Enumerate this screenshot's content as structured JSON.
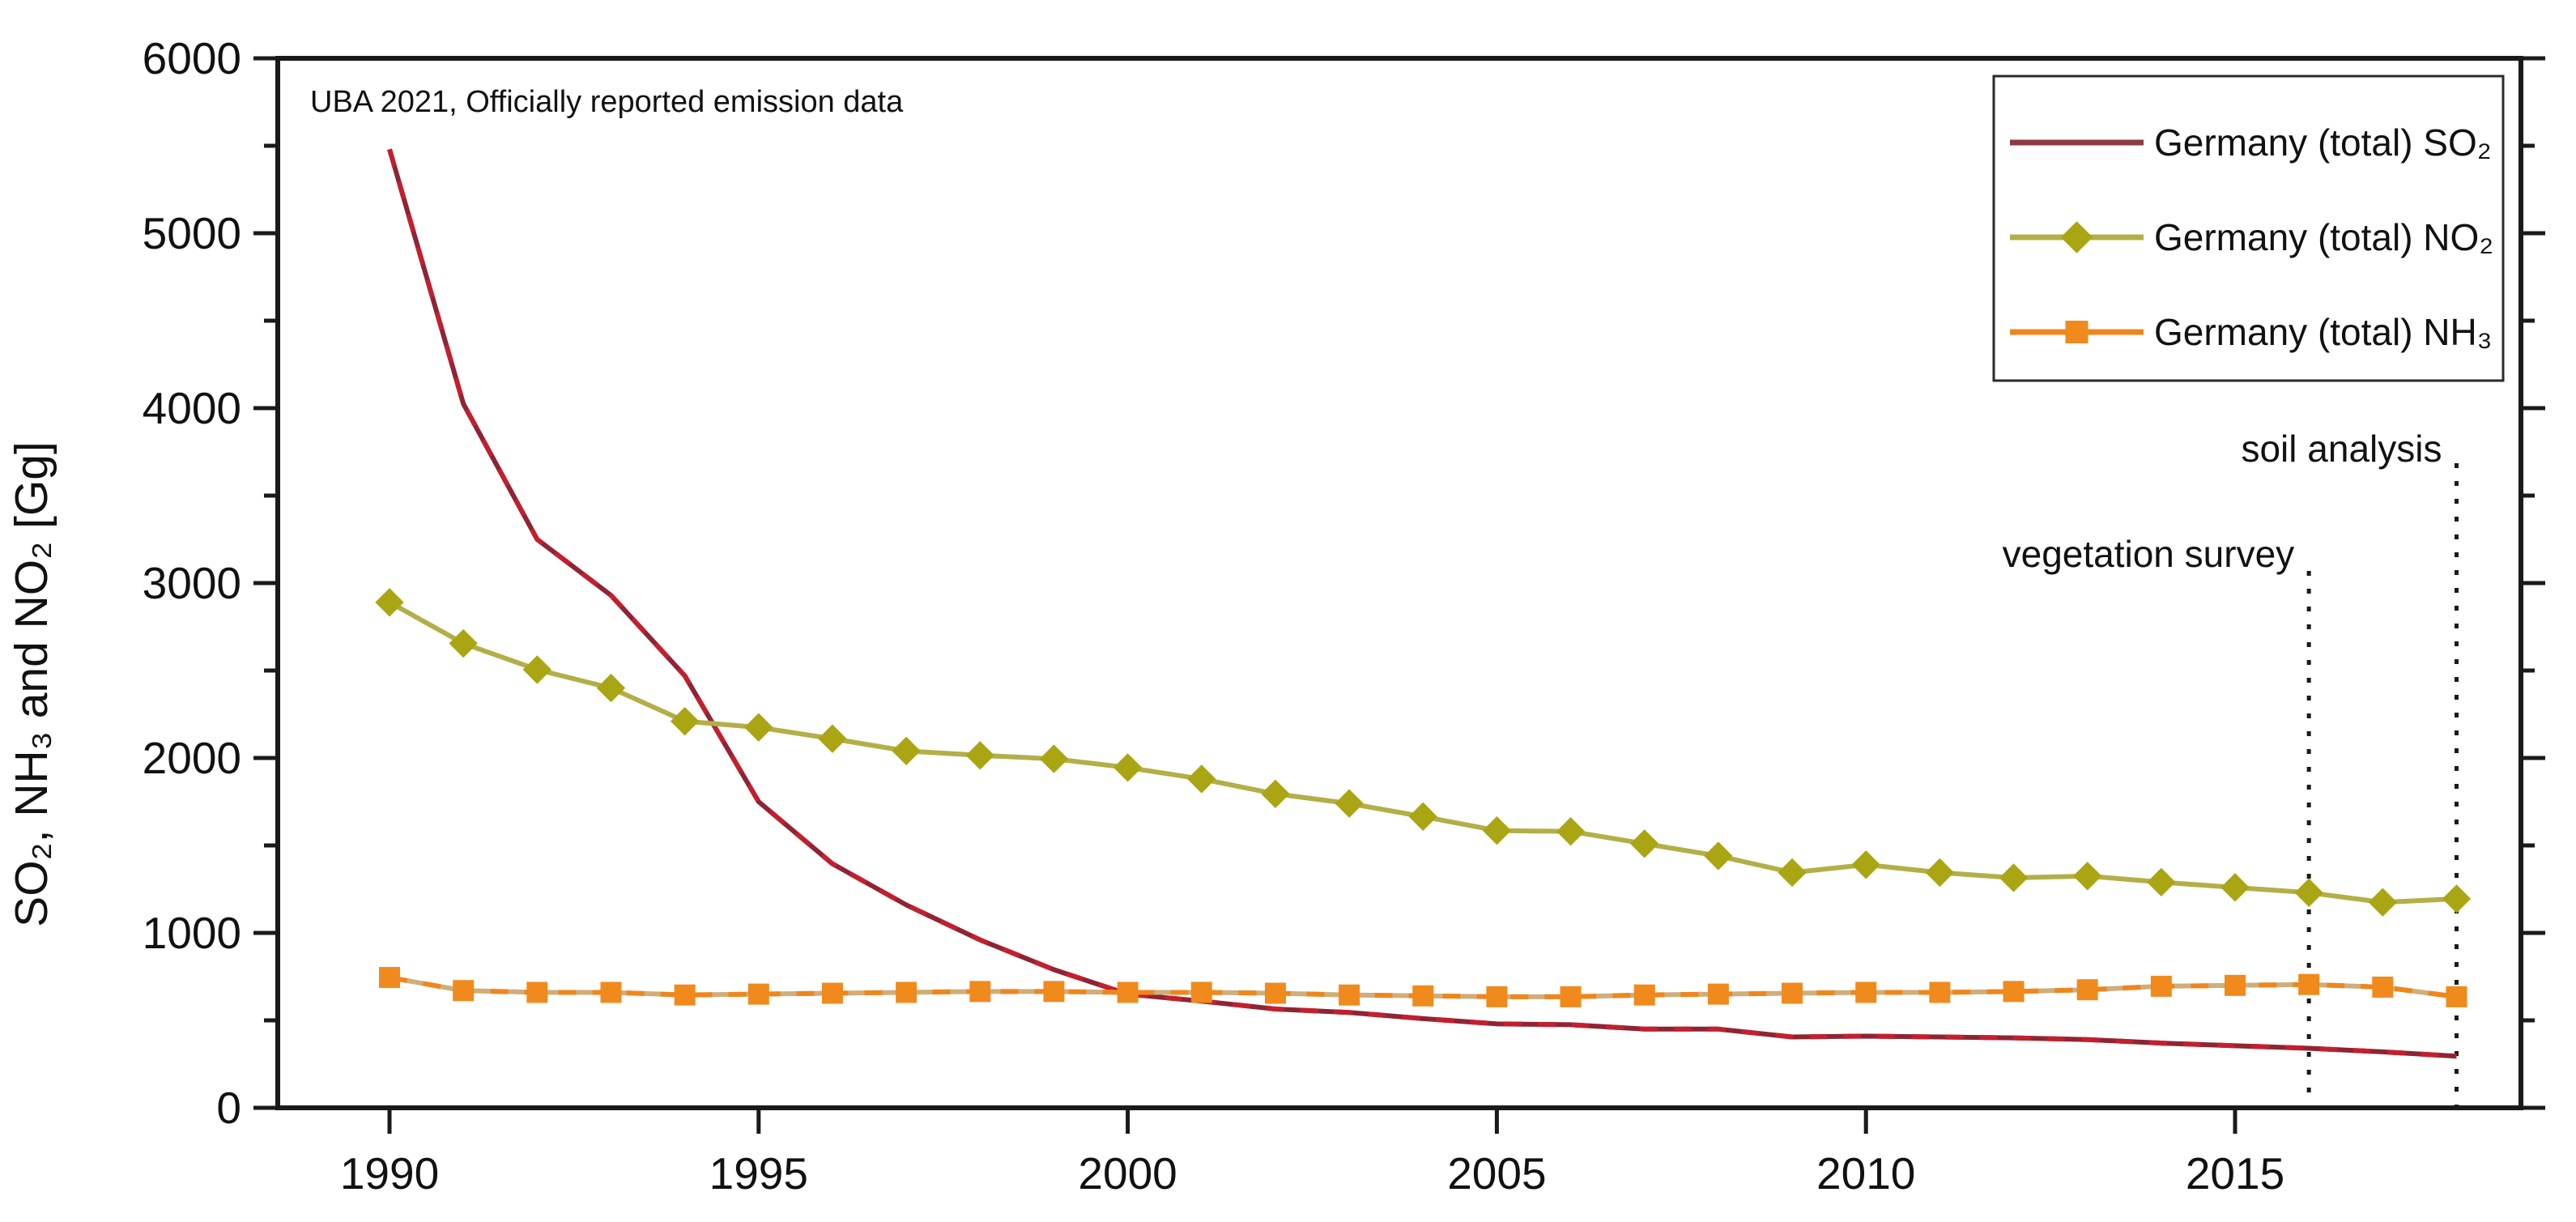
{
  "figure": {
    "annotation": "UBA 2021, Officially reported emission data",
    "y_axis_title": "SO₂, NH₃ and NO₂ [Gg]"
  },
  "chart_data": {
    "type": "line",
    "title": "",
    "xlabel": "",
    "ylabel": "SO₂, NH₃ and NO₂ [Gg]",
    "grid": false,
    "legend_position": "top-right",
    "xlim": [
      1988.5,
      2018.9
    ],
    "ylim": [
      0,
      6000
    ],
    "x_ticks": [
      1990,
      1995,
      2000,
      2005,
      2010,
      2015
    ],
    "y_ticks": [
      0,
      1000,
      2000,
      3000,
      4000,
      5000,
      6000
    ],
    "y_minor_step": 500,
    "x": [
      1990,
      1991,
      1992,
      1993,
      1994,
      1995,
      1996,
      1997,
      1998,
      1999,
      2000,
      2001,
      2002,
      2003,
      2004,
      2005,
      2006,
      2007,
      2008,
      2009,
      2010,
      2011,
      2012,
      2013,
      2014,
      2015,
      2016,
      2017,
      2018
    ],
    "series": [
      {
        "name": "Germany (total) SO₂",
        "unit": "Gg",
        "line_color": "#8f2433",
        "line_color_alt": "#c2202f",
        "legend_color": "#8e3944",
        "marker": "none",
        "values": [
          5480,
          4025,
          3250,
          2930,
          2470,
          1750,
          1395,
          1160,
          960,
          790,
          650,
          610,
          565,
          545,
          510,
          480,
          475,
          450,
          450,
          405,
          410,
          405,
          400,
          390,
          370,
          355,
          340,
          320,
          295
        ]
      },
      {
        "name": "Germany (total) NO₂",
        "unit": "Gg",
        "line_color": "#b3af48",
        "line_color_alt": "",
        "legend_color": "#b3af48",
        "marker": "diamond",
        "marker_color": "#aaa613",
        "values": [
          2890,
          2655,
          2505,
          2400,
          2210,
          2175,
          2110,
          2040,
          2015,
          1995,
          1945,
          1880,
          1795,
          1740,
          1665,
          1585,
          1580,
          1510,
          1440,
          1345,
          1390,
          1345,
          1315,
          1325,
          1290,
          1260,
          1230,
          1175,
          1195
        ]
      },
      {
        "name": "Germany (total) NH₃",
        "unit": "Gg",
        "line_color": "#cfae7a",
        "line_color_alt": "#ef861b",
        "legend_color": "#ef861b",
        "marker": "square",
        "marker_color": "#f08a1d",
        "values": [
          745,
          670,
          660,
          660,
          645,
          650,
          655,
          660,
          665,
          665,
          660,
          660,
          655,
          645,
          640,
          635,
          635,
          645,
          650,
          655,
          660,
          660,
          665,
          675,
          695,
          700,
          705,
          690,
          635
        ]
      }
    ],
    "annotations": [
      {
        "label": "vegetation survey",
        "year": 2016,
        "line_top": 705,
        "label_baseline": 700
      },
      {
        "label": "soil analysis",
        "year": 2018,
        "line_top": 572,
        "label_baseline": 570
      }
    ]
  },
  "colors": {
    "axis": "#1a1a1a",
    "event_line": "#1a1a1a",
    "legend_border": "#2a2a2a",
    "background": "#ffffff"
  }
}
